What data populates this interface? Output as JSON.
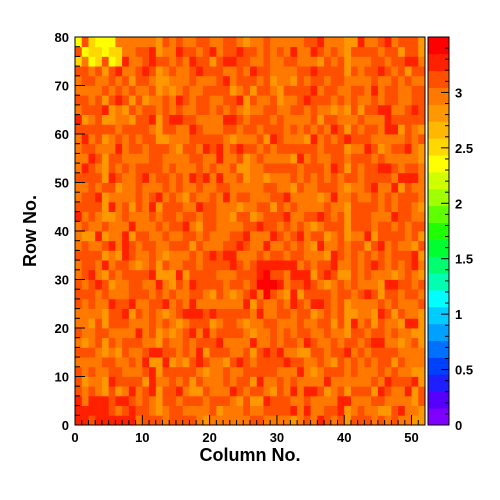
{
  "chart_data": {
    "type": "heatmap",
    "title": "",
    "xlabel": "Column No.",
    "ylabel": "Row No.",
    "xlim": [
      0,
      52
    ],
    "ylim": [
      0,
      80
    ],
    "x_ticks": [
      0,
      10,
      20,
      30,
      40,
      50
    ],
    "y_ticks": [
      0,
      10,
      20,
      30,
      40,
      50,
      60,
      70,
      80
    ],
    "z_range": [
      0,
      3.5
    ],
    "color_ticks": [
      0,
      0.5,
      1,
      1.5,
      2,
      2.5,
      3
    ],
    "colorbar_position": "right",
    "grid": false,
    "cell_size": [
      1,
      2
    ],
    "z_description": "dominant cell value",
    "z_typical": 3.05,
    "z_spread": 0.18,
    "z_low_patches": [
      {
        "x_range": [
          0,
          7
        ],
        "y_range": [
          74,
          80
        ],
        "z": 2.45
      },
      {
        "x_range": [
          49,
          51
        ],
        "y_range": [
          0,
          8
        ],
        "z": 2.8
      }
    ],
    "z_high_patches": [
      {
        "x_range": [
          27,
          33
        ],
        "y_range": [
          24,
          34
        ],
        "z": 3.35
      },
      {
        "x_range": [
          0,
          10
        ],
        "y_range": [
          0,
          6
        ],
        "z": 3.3
      }
    ],
    "z_column_streaks": [
      {
        "x": 4,
        "z": 2.85
      },
      {
        "x": 12,
        "z": 2.85
      },
      {
        "x": 40,
        "z": 2.82
      },
      {
        "x": 51,
        "z": 2.85
      }
    ]
  },
  "palette": [
    "#7f00ff",
    "#5500ff",
    "#1e1eff",
    "#0040ff",
    "#0070ff",
    "#00a0ff",
    "#00ccff",
    "#00ffff",
    "#00ffb0",
    "#00ff70",
    "#00ff30",
    "#20ff00",
    "#60ff00",
    "#a0ff00",
    "#d0ff00",
    "#ffff00",
    "#ffd800",
    "#ffb800",
    "#ff9800",
    "#ff7800",
    "#ff5000",
    "#ff2000",
    "#ff0000"
  ]
}
